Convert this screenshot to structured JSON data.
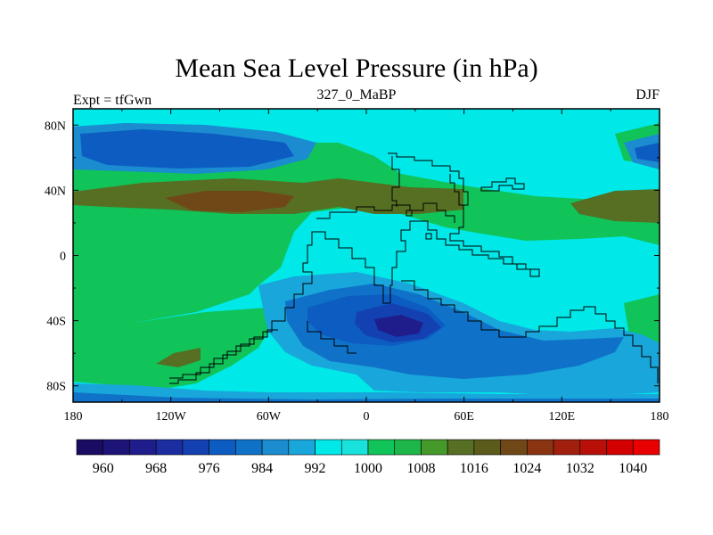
{
  "header": {
    "title": "Mean Sea Level Pressure (in hPa)",
    "left": "Expt = tfGwn",
    "center": "327_0_MaBP",
    "right": "DJF"
  },
  "chart_data": {
    "type": "contour-map",
    "title": "Mean Sea Level Pressure (in hPa)",
    "experiment": "tfGwn",
    "period": "327_0_MaBP",
    "season": "DJF",
    "xlim": [
      -180,
      180
    ],
    "ylim": [
      -90,
      90
    ],
    "x_ticks": [
      -180,
      -120,
      -60,
      0,
      60,
      120,
      180
    ],
    "x_tick_labels": [
      "180",
      "120W",
      "60W",
      "0",
      "60E",
      "120E",
      "180"
    ],
    "y_ticks": [
      80,
      40,
      0,
      -40,
      -80
    ],
    "y_tick_labels": [
      "80N",
      "40N",
      "0",
      "40S",
      "80S"
    ],
    "colorbar": {
      "levels": [
        960,
        964,
        968,
        972,
        976,
        980,
        984,
        988,
        992,
        996,
        1000,
        1004,
        1008,
        1012,
        1016,
        1020,
        1024,
        1028,
        1032,
        1036,
        1040
      ],
      "labels": [
        "960",
        "968",
        "976",
        "984",
        "992",
        "1000",
        "1008",
        "1016",
        "1024",
        "1032",
        "1040"
      ],
      "colors": [
        "#1a0b63",
        "#1d1478",
        "#1f1d8c",
        "#1b2da0",
        "#1441b2",
        "#0c5cc2",
        "#0f72c8",
        "#1a8ccf",
        "#19a6da",
        "#00e8e8",
        "#19e2dc",
        "#10c45a",
        "#1cb748",
        "#45982a",
        "#566f22",
        "#5b5b1b",
        "#704818",
        "#8a3412",
        "#a1200d",
        "#b81008",
        "#d30000",
        "#e80000"
      ]
    },
    "regions": [
      {
        "name": "north-pacific-low",
        "level": 988,
        "lon": [
          -170,
          -100
        ],
        "lat": [
          60,
          75
        ]
      },
      {
        "name": "northwest-high-belt",
        "level": 1016,
        "lon": [
          -150,
          40
        ],
        "lat": [
          25,
          40
        ]
      },
      {
        "name": "east-pacific-high",
        "level": 1020,
        "lon": [
          125,
          180
        ],
        "lat": [
          25,
          40
        ]
      },
      {
        "name": "southern-ocean-low",
        "level": 972,
        "lon": [
          0,
          55
        ],
        "lat": [
          -50,
          -35
        ]
      },
      {
        "name": "south-pacific-high",
        "level": 1016,
        "lon": [
          -130,
          -100
        ],
        "lat": [
          -65,
          -58
        ]
      }
    ]
  }
}
